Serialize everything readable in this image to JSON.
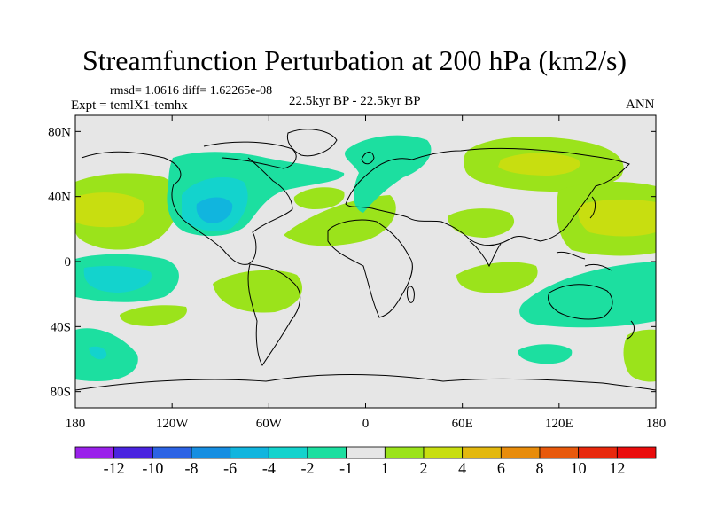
{
  "header": {
    "title": "Streamfunction Perturbation at 200 hPa (km2/s)",
    "stats": "rmsd= 1.0616 diff= 1.62265e-08",
    "experiment": "Expt = temlX1-temhx",
    "period": "22.5kyr BP - 22.5kyr BP",
    "season": "ANN"
  },
  "map": {
    "lat_range": [
      -90,
      90
    ],
    "lon_range": [
      -180,
      180
    ],
    "lat_ticks": [
      {
        "value": 80,
        "label": "80N"
      },
      {
        "value": 40,
        "label": "40N"
      },
      {
        "value": 0,
        "label": "0"
      },
      {
        "value": -40,
        "label": "40S"
      },
      {
        "value": -80,
        "label": "80S"
      }
    ],
    "lon_ticks": [
      {
        "value": -180,
        "label": "180"
      },
      {
        "value": -120,
        "label": "120W"
      },
      {
        "value": -60,
        "label": "60W"
      },
      {
        "value": 0,
        "label": "0"
      },
      {
        "value": 60,
        "label": "60E"
      },
      {
        "value": 120,
        "label": "120E"
      },
      {
        "value": 180,
        "label": "180"
      }
    ]
  },
  "colorbar": {
    "levels": [
      "-12",
      "-10",
      "-8",
      "-6",
      "-4",
      "-2",
      "-1",
      "1",
      "2",
      "4",
      "6",
      "8",
      "10",
      "12"
    ],
    "colors": [
      "#9a21ea",
      "#4a24e0",
      "#2c63e4",
      "#168ee1",
      "#11b5de",
      "#13d3cd",
      "#1cdfa0",
      "#e6e6e6",
      "#9be31b",
      "#c8de10",
      "#e3b80e",
      "#e88c0b",
      "#e8590c",
      "#e8280c",
      "#ea0c0c"
    ]
  }
}
